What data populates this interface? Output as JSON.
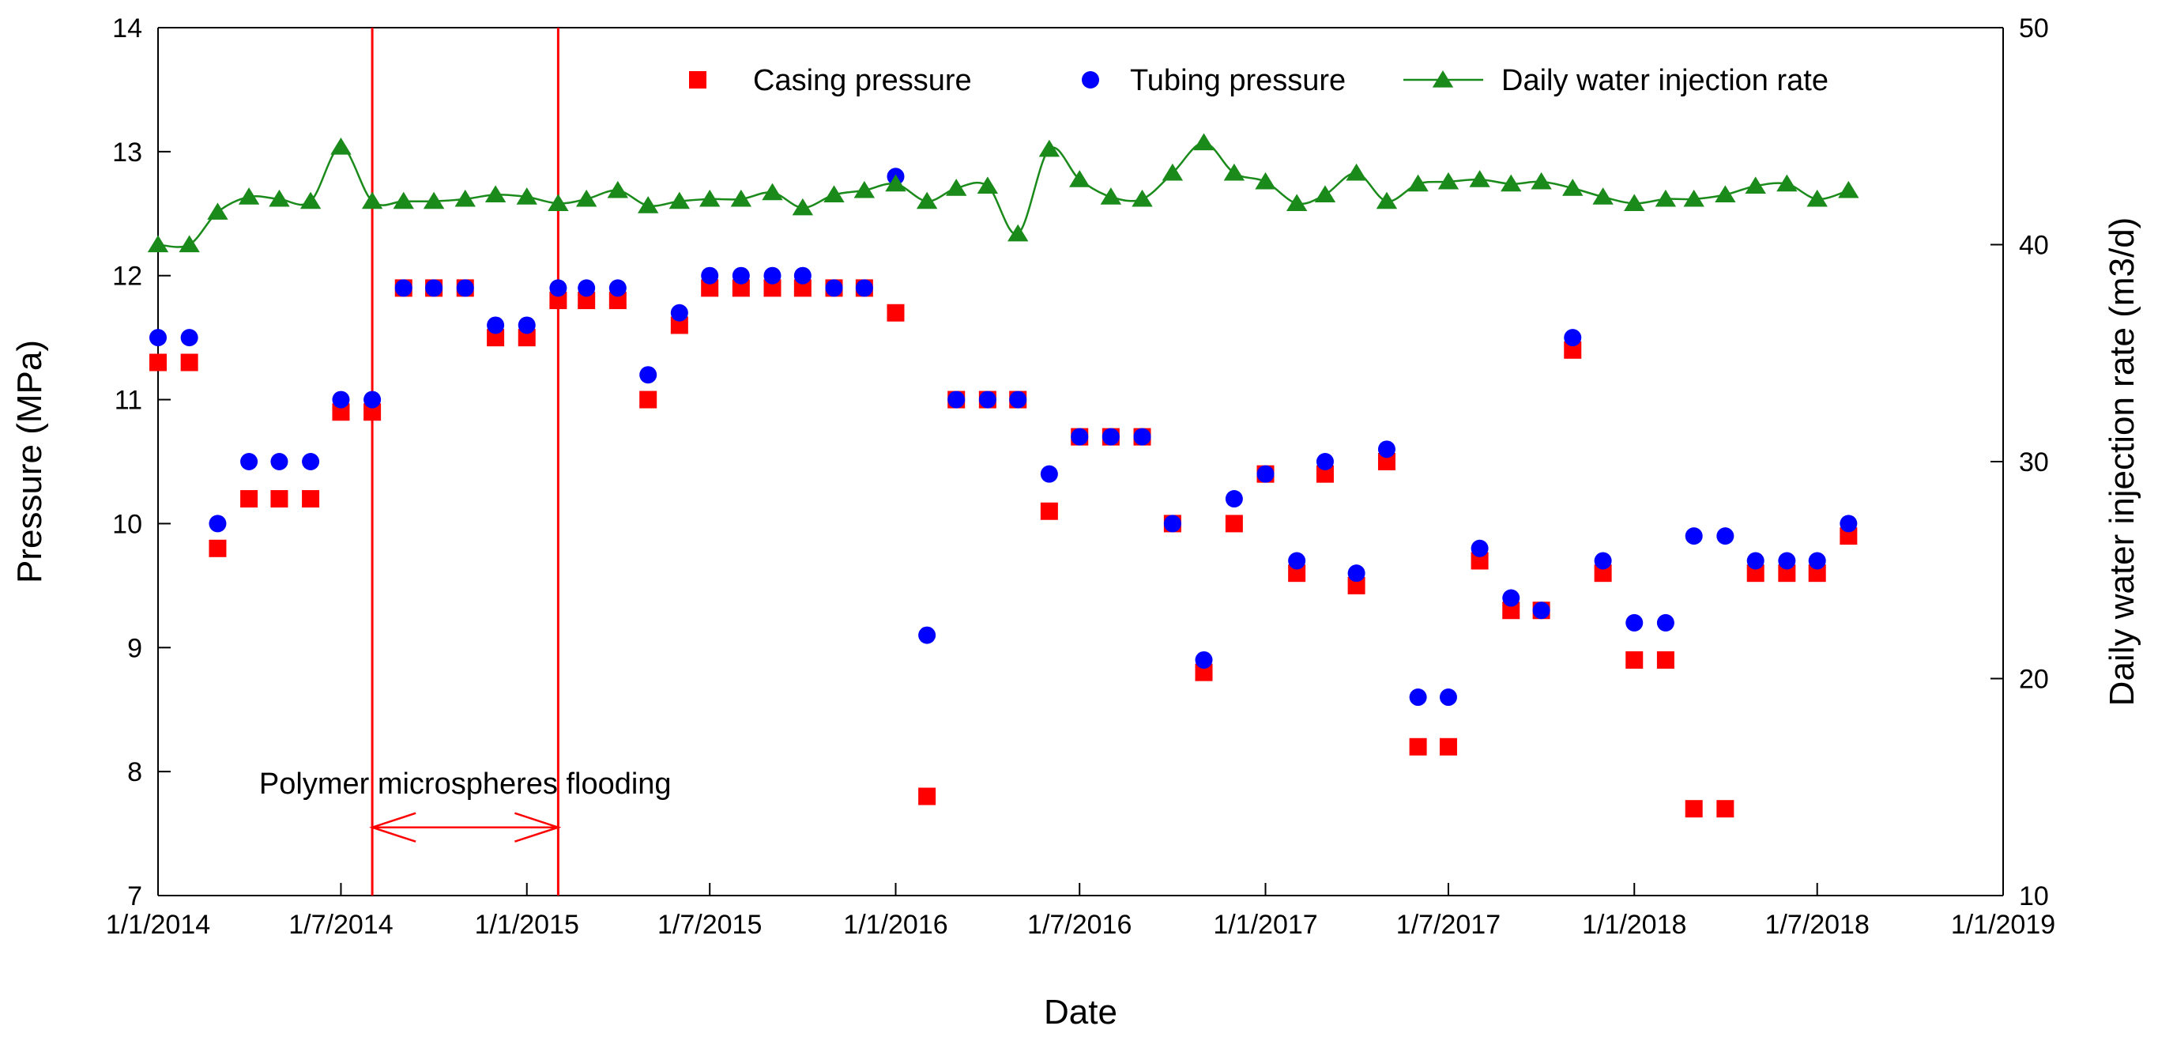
{
  "chart_data": {
    "type": "scatter",
    "xlabel": "Date",
    "ylabel_left": "Pressure (MPa)",
    "ylabel_right": "Daily water injection rate (m3/d)",
    "x_range": [
      "2014-01-01",
      "2019-01-01"
    ],
    "x_ticks": [
      "1/1/2014",
      "1/7/2014",
      "1/1/2015",
      "1/7/2015",
      "1/1/2016",
      "1/7/2016",
      "1/1/2017",
      "1/7/2017",
      "1/1/2018",
      "1/7/2018",
      "1/1/2019"
    ],
    "y_left_range": [
      7,
      14
    ],
    "y_left_ticks": [
      "7",
      "8",
      "9",
      "10",
      "11",
      "12",
      "13",
      "14"
    ],
    "y_right_range": [
      10,
      50
    ],
    "y_right_ticks": [
      "10",
      "20",
      "30",
      "40",
      "50"
    ],
    "legend_position": "top-right",
    "grid": false,
    "colors": {
      "casing": "#ff0000",
      "tubing": "#0000ff",
      "injection": "#1a8a1a",
      "marker_line": "#ff0000"
    },
    "series": [
      {
        "name": "Casing pressure",
        "axis": "left",
        "marker": "square",
        "points": [
          [
            "2014-01-01",
            11.3
          ],
          [
            "2014-02-01",
            11.3
          ],
          [
            "2014-03-01",
            9.8
          ],
          [
            "2014-04-01",
            10.2
          ],
          [
            "2014-05-01",
            10.2
          ],
          [
            "2014-06-01",
            10.2
          ],
          [
            "2014-07-01",
            10.9
          ],
          [
            "2014-08-01",
            10.9
          ],
          [
            "2014-09-01",
            11.9
          ],
          [
            "2014-10-01",
            11.9
          ],
          [
            "2014-11-01",
            11.9
          ],
          [
            "2014-12-01",
            11.5
          ],
          [
            "2015-01-01",
            11.5
          ],
          [
            "2015-02-01",
            11.8
          ],
          [
            "2015-03-01",
            11.8
          ],
          [
            "2015-04-01",
            11.8
          ],
          [
            "2015-05-01",
            11.0
          ],
          [
            "2015-06-01",
            11.6
          ],
          [
            "2015-07-01",
            11.9
          ],
          [
            "2015-08-01",
            11.9
          ],
          [
            "2015-09-01",
            11.9
          ],
          [
            "2015-10-01",
            11.9
          ],
          [
            "2015-11-01",
            11.9
          ],
          [
            "2015-12-01",
            11.9
          ],
          [
            "2016-01-01",
            11.7
          ],
          [
            "2016-02-01",
            7.8
          ],
          [
            "2016-03-01",
            11.0
          ],
          [
            "2016-04-01",
            11.0
          ],
          [
            "2016-05-01",
            11.0
          ],
          [
            "2016-06-01",
            10.1
          ],
          [
            "2016-07-01",
            10.7
          ],
          [
            "2016-08-01",
            10.7
          ],
          [
            "2016-09-01",
            10.7
          ],
          [
            "2016-10-01",
            10.0
          ],
          [
            "2016-11-01",
            8.8
          ],
          [
            "2016-12-01",
            10.0
          ],
          [
            "2017-01-01",
            10.4
          ],
          [
            "2017-02-01",
            9.6
          ],
          [
            "2017-03-01",
            10.4
          ],
          [
            "2017-04-01",
            9.5
          ],
          [
            "2017-05-01",
            10.5
          ],
          [
            "2017-06-01",
            8.2
          ],
          [
            "2017-07-01",
            8.2
          ],
          [
            "2017-08-01",
            9.7
          ],
          [
            "2017-09-01",
            9.3
          ],
          [
            "2017-10-01",
            9.3
          ],
          [
            "2017-11-01",
            11.4
          ],
          [
            "2017-12-01",
            9.6
          ],
          [
            "2018-01-01",
            8.9
          ],
          [
            "2018-02-01",
            8.9
          ],
          [
            "2018-03-01",
            7.7
          ],
          [
            "2018-04-01",
            7.7
          ],
          [
            "2018-05-01",
            9.6
          ],
          [
            "2018-06-01",
            9.6
          ],
          [
            "2018-07-01",
            9.6
          ],
          [
            "2018-08-01",
            9.9
          ]
        ]
      },
      {
        "name": "Tubing pressure",
        "axis": "left",
        "marker": "circle",
        "points": [
          [
            "2014-01-01",
            11.5
          ],
          [
            "2014-02-01",
            11.5
          ],
          [
            "2014-03-01",
            10.0
          ],
          [
            "2014-04-01",
            10.5
          ],
          [
            "2014-05-01",
            10.5
          ],
          [
            "2014-06-01",
            10.5
          ],
          [
            "2014-07-01",
            11.0
          ],
          [
            "2014-08-01",
            11.0
          ],
          [
            "2014-09-01",
            11.9
          ],
          [
            "2014-10-01",
            11.9
          ],
          [
            "2014-11-01",
            11.9
          ],
          [
            "2014-12-01",
            11.6
          ],
          [
            "2015-01-01",
            11.6
          ],
          [
            "2015-02-01",
            11.9
          ],
          [
            "2015-03-01",
            11.9
          ],
          [
            "2015-04-01",
            11.9
          ],
          [
            "2015-05-01",
            11.2
          ],
          [
            "2015-06-01",
            11.7
          ],
          [
            "2015-07-01",
            12.0
          ],
          [
            "2015-08-01",
            12.0
          ],
          [
            "2015-09-01",
            12.0
          ],
          [
            "2015-10-01",
            12.0
          ],
          [
            "2015-11-01",
            11.9
          ],
          [
            "2015-12-01",
            11.9
          ],
          [
            "2016-01-01",
            12.8
          ],
          [
            "2016-02-01",
            9.1
          ],
          [
            "2016-03-01",
            11.0
          ],
          [
            "2016-04-01",
            11.0
          ],
          [
            "2016-05-01",
            11.0
          ],
          [
            "2016-06-01",
            10.4
          ],
          [
            "2016-07-01",
            10.7
          ],
          [
            "2016-08-01",
            10.7
          ],
          [
            "2016-09-01",
            10.7
          ],
          [
            "2016-10-01",
            10.0
          ],
          [
            "2016-11-01",
            8.9
          ],
          [
            "2016-12-01",
            10.2
          ],
          [
            "2017-01-01",
            10.4
          ],
          [
            "2017-02-01",
            9.7
          ],
          [
            "2017-03-01",
            10.5
          ],
          [
            "2017-04-01",
            9.6
          ],
          [
            "2017-05-01",
            10.6
          ],
          [
            "2017-06-01",
            8.6
          ],
          [
            "2017-07-01",
            8.6
          ],
          [
            "2017-08-01",
            9.8
          ],
          [
            "2017-09-01",
            9.4
          ],
          [
            "2017-10-01",
            9.3
          ],
          [
            "2017-11-01",
            11.5
          ],
          [
            "2017-12-01",
            9.7
          ],
          [
            "2018-01-01",
            9.2
          ],
          [
            "2018-02-01",
            9.2
          ],
          [
            "2018-03-01",
            9.9
          ],
          [
            "2018-04-01",
            9.9
          ],
          [
            "2018-05-01",
            9.7
          ],
          [
            "2018-06-01",
            9.7
          ],
          [
            "2018-07-01",
            9.7
          ],
          [
            "2018-08-01",
            10.0
          ]
        ]
      },
      {
        "name": "Daily water injection rate",
        "axis": "right",
        "marker": "triangle",
        "line": "smooth",
        "points": [
          [
            "2014-01-01",
            40.0
          ],
          [
            "2014-02-01",
            40.0
          ],
          [
            "2014-03-01",
            41.5
          ],
          [
            "2014-04-01",
            42.2
          ],
          [
            "2014-05-01",
            42.1
          ],
          [
            "2014-06-01",
            42.0
          ],
          [
            "2014-07-01",
            44.5
          ],
          [
            "2014-08-01",
            42.0
          ],
          [
            "2014-09-01",
            42.0
          ],
          [
            "2014-10-01",
            42.0
          ],
          [
            "2014-11-01",
            42.1
          ],
          [
            "2014-12-01",
            42.3
          ],
          [
            "2015-01-01",
            42.2
          ],
          [
            "2015-02-01",
            41.9
          ],
          [
            "2015-03-01",
            42.1
          ],
          [
            "2015-04-01",
            42.5
          ],
          [
            "2015-05-01",
            41.8
          ],
          [
            "2015-06-01",
            42.0
          ],
          [
            "2015-07-01",
            42.1
          ],
          [
            "2015-08-01",
            42.1
          ],
          [
            "2015-09-01",
            42.4
          ],
          [
            "2015-10-01",
            41.7
          ],
          [
            "2015-11-01",
            42.3
          ],
          [
            "2015-12-01",
            42.5
          ],
          [
            "2016-01-01",
            42.8
          ],
          [
            "2016-02-01",
            42.0
          ],
          [
            "2016-03-01",
            42.6
          ],
          [
            "2016-04-01",
            42.7
          ],
          [
            "2016-05-01",
            40.5
          ],
          [
            "2016-06-01",
            44.4
          ],
          [
            "2016-07-01",
            43.0
          ],
          [
            "2016-08-01",
            42.2
          ],
          [
            "2016-09-01",
            42.1
          ],
          [
            "2016-10-01",
            43.3
          ],
          [
            "2016-11-01",
            44.7
          ],
          [
            "2016-12-01",
            43.3
          ],
          [
            "2017-01-01",
            42.9
          ],
          [
            "2017-02-01",
            41.9
          ],
          [
            "2017-03-01",
            42.3
          ],
          [
            "2017-04-01",
            43.3
          ],
          [
            "2017-05-01",
            42.0
          ],
          [
            "2017-06-01",
            42.8
          ],
          [
            "2017-07-01",
            42.9
          ],
          [
            "2017-08-01",
            43.0
          ],
          [
            "2017-09-01",
            42.8
          ],
          [
            "2017-10-01",
            42.9
          ],
          [
            "2017-11-01",
            42.6
          ],
          [
            "2017-12-01",
            42.2
          ],
          [
            "2018-01-01",
            41.9
          ],
          [
            "2018-02-01",
            42.1
          ],
          [
            "2018-03-01",
            42.1
          ],
          [
            "2018-04-01",
            42.3
          ],
          [
            "2018-05-01",
            42.7
          ],
          [
            "2018-06-01",
            42.8
          ],
          [
            "2018-07-01",
            42.1
          ],
          [
            "2018-08-01",
            42.5
          ]
        ]
      }
    ],
    "reference_lines": [
      "2014-08-01",
      "2015-02-01"
    ],
    "annotation": {
      "text": "Polymer microspheres flooding",
      "x_start": "2014-08-01",
      "x_end": "2015-02-01",
      "y": 7.55,
      "label_y": 7.9
    }
  }
}
